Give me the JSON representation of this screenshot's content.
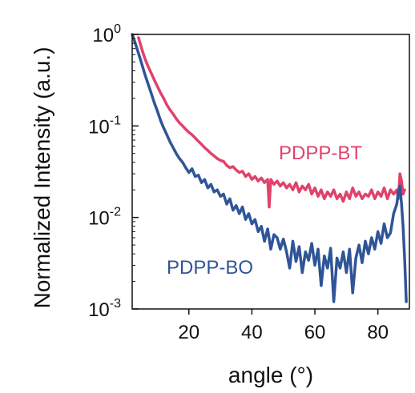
{
  "chart_data": {
    "type": "line",
    "title": "",
    "xlabel": "angle (°)",
    "ylabel": "Normalized Intensity (a.u.)",
    "xlim": [
      2,
      90
    ],
    "ylim": [
      0.001,
      1
    ],
    "yscale": "log",
    "grid": false,
    "x_ticks": [
      20,
      40,
      60,
      80
    ],
    "y_ticks": [
      {
        "value": 1,
        "base": "10",
        "exp": "0"
      },
      {
        "value": 0.1,
        "base": "10",
        "exp": "-1"
      },
      {
        "value": 0.01,
        "base": "10",
        "exp": "-2"
      },
      {
        "value": 0.001,
        "base": "10",
        "exp": "-3"
      }
    ],
    "series": [
      {
        "name": "PDPP-BT",
        "color": "#e0426a",
        "points": [
          [
            4,
            0.92
          ],
          [
            5,
            0.7
          ],
          [
            6,
            0.55
          ],
          [
            7,
            0.45
          ],
          [
            8,
            0.38
          ],
          [
            9,
            0.32
          ],
          [
            10,
            0.27
          ],
          [
            11,
            0.23
          ],
          [
            12,
            0.2
          ],
          [
            13,
            0.17
          ],
          [
            14,
            0.15
          ],
          [
            15,
            0.135
          ],
          [
            16,
            0.12
          ],
          [
            17,
            0.108
          ],
          [
            18,
            0.1
          ],
          [
            19,
            0.092
          ],
          [
            20,
            0.085
          ],
          [
            21,
            0.08
          ],
          [
            22,
            0.074
          ],
          [
            23,
            0.068
          ],
          [
            24,
            0.063
          ],
          [
            25,
            0.058
          ],
          [
            26,
            0.054
          ],
          [
            27,
            0.05
          ],
          [
            28,
            0.047
          ],
          [
            29,
            0.044
          ],
          [
            30,
            0.042
          ],
          [
            31,
            0.041
          ],
          [
            32,
            0.037
          ],
          [
            33,
            0.035
          ],
          [
            34,
            0.036
          ],
          [
            35,
            0.033
          ],
          [
            36,
            0.031
          ],
          [
            37,
            0.032
          ],
          [
            38,
            0.028
          ],
          [
            39,
            0.03
          ],
          [
            40,
            0.026
          ],
          [
            41,
            0.028
          ],
          [
            42,
            0.025
          ],
          [
            43,
            0.027
          ],
          [
            44,
            0.024
          ],
          [
            45,
            0.026
          ],
          [
            45.5,
            0.013
          ],
          [
            46,
            0.026
          ],
          [
            47,
            0.023
          ],
          [
            48,
            0.025
          ],
          [
            49,
            0.022
          ],
          [
            50,
            0.024
          ],
          [
            51,
            0.021
          ],
          [
            52,
            0.023
          ],
          [
            53,
            0.02
          ],
          [
            54,
            0.024
          ],
          [
            55,
            0.019
          ],
          [
            56,
            0.022
          ],
          [
            57,
            0.02
          ],
          [
            58,
            0.023
          ],
          [
            59,
            0.018
          ],
          [
            60,
            0.021
          ],
          [
            61,
            0.017
          ],
          [
            62,
            0.02
          ],
          [
            63,
            0.016
          ],
          [
            64,
            0.019
          ],
          [
            65,
            0.017
          ],
          [
            66,
            0.02
          ],
          [
            67,
            0.016
          ],
          [
            68,
            0.018
          ],
          [
            69,
            0.015
          ],
          [
            70,
            0.019
          ],
          [
            71,
            0.016
          ],
          [
            72,
            0.021
          ],
          [
            73,
            0.017
          ],
          [
            74,
            0.019
          ],
          [
            75,
            0.016
          ],
          [
            76,
            0.018
          ],
          [
            77,
            0.017
          ],
          [
            78,
            0.02
          ],
          [
            79,
            0.016
          ],
          [
            80,
            0.019
          ],
          [
            81,
            0.017
          ],
          [
            82,
            0.021
          ],
          [
            83,
            0.016
          ],
          [
            84,
            0.02
          ],
          [
            85,
            0.018
          ],
          [
            86,
            0.02
          ],
          [
            86.5,
            0.016
          ],
          [
            87,
            0.03
          ],
          [
            87.5,
            0.025
          ],
          [
            88,
            0.018
          ],
          [
            88.5,
            0.02
          ]
        ]
      },
      {
        "name": "PDPP-BO",
        "color": "#2f5597",
        "points": [
          [
            2,
            1.0
          ],
          [
            3,
            0.8
          ],
          [
            4,
            0.62
          ],
          [
            5,
            0.48
          ],
          [
            6,
            0.37
          ],
          [
            7,
            0.29
          ],
          [
            8,
            0.23
          ],
          [
            9,
            0.18
          ],
          [
            10,
            0.145
          ],
          [
            11,
            0.115
          ],
          [
            12,
            0.095
          ],
          [
            13,
            0.08
          ],
          [
            14,
            0.067
          ],
          [
            15,
            0.058
          ],
          [
            16,
            0.05
          ],
          [
            17,
            0.044
          ],
          [
            18,
            0.04
          ],
          [
            19,
            0.035
          ],
          [
            20,
            0.031
          ],
          [
            21,
            0.034
          ],
          [
            22,
            0.028
          ],
          [
            23,
            0.029
          ],
          [
            24,
            0.024
          ],
          [
            25,
            0.026
          ],
          [
            26,
            0.021
          ],
          [
            27,
            0.023
          ],
          [
            28,
            0.019
          ],
          [
            29,
            0.02
          ],
          [
            30,
            0.017
          ],
          [
            31,
            0.018
          ],
          [
            32,
            0.014
          ],
          [
            33,
            0.016
          ],
          [
            34,
            0.012
          ],
          [
            35,
            0.0135
          ],
          [
            36,
            0.011
          ],
          [
            37,
            0.013
          ],
          [
            38,
            0.0095
          ],
          [
            39,
            0.011
          ],
          [
            40,
            0.0085
          ],
          [
            41,
            0.0095
          ],
          [
            42,
            0.007
          ],
          [
            43,
            0.008
          ],
          [
            44,
            0.0055
          ],
          [
            45,
            0.0075
          ],
          [
            46,
            0.0045
          ],
          [
            47,
            0.0065
          ],
          [
            48,
            0.006
          ],
          [
            49,
            0.0045
          ],
          [
            50,
            0.0058
          ],
          [
            51,
            0.0042
          ],
          [
            52,
            0.0028
          ],
          [
            53,
            0.0055
          ],
          [
            54,
            0.0033
          ],
          [
            55,
            0.0048
          ],
          [
            56,
            0.0025
          ],
          [
            57,
            0.0042
          ],
          [
            58,
            0.0034
          ],
          [
            59,
            0.0052
          ],
          [
            60,
            0.003
          ],
          [
            61,
            0.0045
          ],
          [
            62,
            0.0018
          ],
          [
            63,
            0.0038
          ],
          [
            64,
            0.0028
          ],
          [
            65,
            0.0046
          ],
          [
            66,
            0.0012
          ],
          [
            67,
            0.0036
          ],
          [
            68,
            0.0028
          ],
          [
            69,
            0.0042
          ],
          [
            70,
            0.0025
          ],
          [
            71,
            0.0045
          ],
          [
            72,
            0.0015
          ],
          [
            73,
            0.0036
          ],
          [
            74,
            0.005
          ],
          [
            75,
            0.0032
          ],
          [
            76,
            0.0055
          ],
          [
            77,
            0.004
          ],
          [
            78,
            0.006
          ],
          [
            79,
            0.0045
          ],
          [
            80,
            0.007
          ],
          [
            81,
            0.0052
          ],
          [
            82,
            0.0085
          ],
          [
            83,
            0.006
          ],
          [
            84,
            0.0068
          ],
          [
            85,
            0.011
          ],
          [
            86,
            0.014
          ],
          [
            86.5,
            0.019
          ],
          [
            87,
            0.022
          ],
          [
            87.5,
            0.014
          ],
          [
            88,
            0.008
          ],
          [
            88.5,
            0.0035
          ],
          [
            89,
            0.0012
          ]
        ]
      }
    ]
  }
}
